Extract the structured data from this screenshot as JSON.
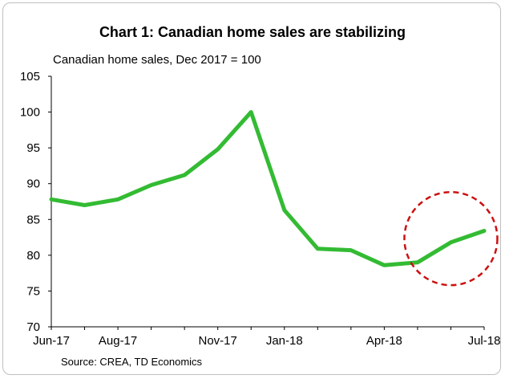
{
  "chart_data": {
    "type": "line",
    "title": "Chart 1: Canadian home sales are stabilizing",
    "subtitle": "Canadian home sales, Dec 2017 = 100",
    "source": "Source: CREA, TD Economics",
    "xlabel": "",
    "ylabel": "",
    "ylim": [
      70,
      105
    ],
    "y_ticks": [
      70,
      75,
      80,
      85,
      90,
      95,
      100,
      105
    ],
    "x_ticks": [
      "Jun-17",
      "Aug-17",
      "Nov-17",
      "Jan-18",
      "Apr-18",
      "Jul-18"
    ],
    "x_tick_months": [
      "2017-06",
      "2017-08",
      "2017-11",
      "2018-01",
      "2018-04",
      "2018-07"
    ],
    "grid": false,
    "x": [
      "2017-06",
      "2017-07",
      "2017-08",
      "2017-09",
      "2017-10",
      "2017-11",
      "2017-12",
      "2018-01",
      "2018-02",
      "2018-03",
      "2018-04",
      "2018-05",
      "2018-06",
      "2018-07"
    ],
    "series": [
      {
        "values": [
          87.8,
          87.0,
          87.8,
          89.8,
          91.2,
          94.8,
          100.0,
          86.3,
          80.9,
          80.7,
          78.6,
          79.0,
          81.8,
          83.4
        ],
        "color": "#33bb33"
      }
    ],
    "annotation": {
      "shape": "dashed-circle",
      "color": "#cc1111",
      "around": [
        "2018-05",
        "2018-07"
      ]
    }
  }
}
